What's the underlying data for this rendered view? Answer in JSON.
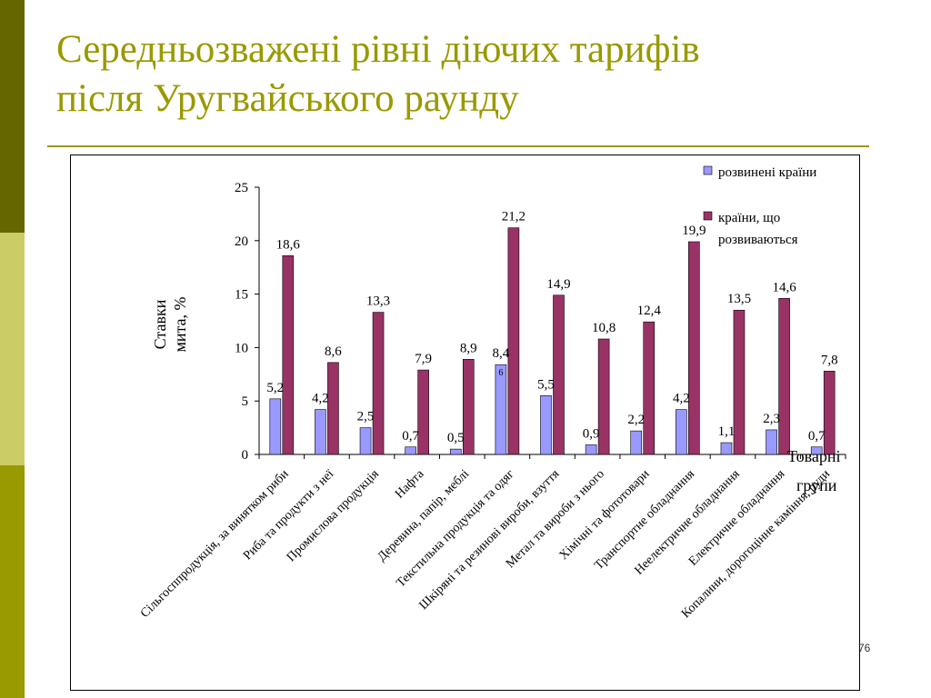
{
  "slide": {
    "title_line1": "Середньозважені рівні діючих тарифів",
    "title_line2": "після Уругвайського раунду",
    "page_number": "76"
  },
  "colors": {
    "accent_dark": "#666600",
    "accent_light": "#cccc66",
    "accent_mid": "#999900",
    "series_developed": "#9999ff",
    "series_developing": "#993366"
  },
  "chart_data": {
    "type": "bar",
    "title": "",
    "ylabel": "Ставки мита, %",
    "ylabel_line1": "Ставки",
    "ylabel_line2": "мита, %",
    "xlabel": "Товарні групи",
    "xlabel_line1": "Товарні",
    "xlabel_line2": "групи",
    "ylim": [
      0,
      25
    ],
    "yticks": [
      0,
      5,
      10,
      15,
      20,
      25
    ],
    "grid": false,
    "legend_position": "top-right",
    "categories": [
      "Сільгосппродукція, за винятком риби",
      "Риба та продукти з неї",
      "Промислова продукція",
      "Нафта",
      "Деревина, папір, меблі",
      "Текстильна продукція та одяг",
      "Шкіряні та резинові вироби, взуття",
      "Метал та вироби з нього",
      "Хімічні та фототовари",
      "Транспортне обладнання",
      "Неелектричне обладнання",
      "Електричне обладнання",
      "Копалини, дорогоцінне каміння, руди"
    ],
    "series": [
      {
        "name": "розвинені країни",
        "values": [
          5.2,
          4.2,
          2.5,
          0.7,
          0.5,
          8.4,
          5.5,
          0.9,
          2.2,
          4.2,
          1.1,
          2.3,
          0.7
        ],
        "labels": [
          "5,2",
          "4,2",
          "2,5",
          "0,7",
          "0,5",
          "8,4",
          "5,5",
          "0,9",
          "2,2",
          "4,2",
          "1,1",
          "2,3",
          "0,7"
        ]
      },
      {
        "name": "країни, що розвиваються",
        "legend_line1": "країни, що",
        "legend_line2": "розвиваються",
        "values": [
          18.6,
          8.6,
          13.3,
          7.9,
          8.9,
          21.2,
          14.9,
          10.8,
          12.4,
          19.9,
          13.5,
          14.6,
          7.8
        ],
        "labels": [
          "18,6",
          "8,6",
          "13,3",
          "7,9",
          "8,9",
          "21,2",
          "14,9",
          "10,8",
          "12,4",
          "19,9",
          "13,5",
          "14,6",
          "7,8"
        ]
      }
    ],
    "annotations": [
      {
        "text": "6",
        "note": "small stray label on the textiles developed-country bar"
      }
    ]
  }
}
